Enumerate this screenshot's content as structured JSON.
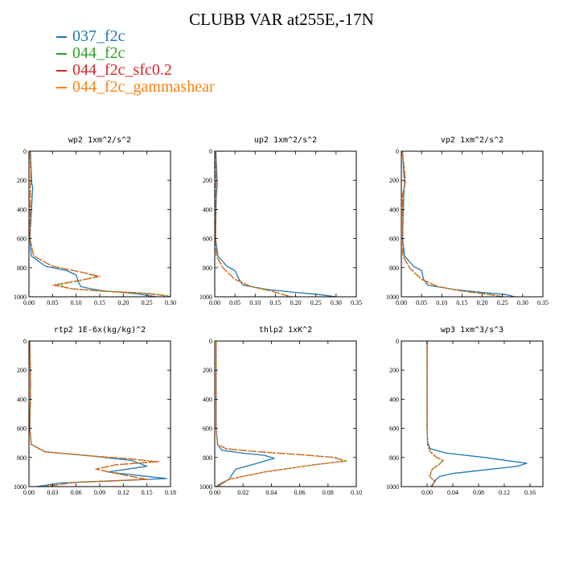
{
  "figure": {
    "title": "CLUBB VAR at255E,-17N"
  },
  "legend": [
    {
      "label": "037_f2c",
      "color": "#1f77b4"
    },
    {
      "label": "044_f2c",
      "color": "#2ca02c"
    },
    {
      "label": "044_f2c_sfc0.2",
      "color": "#d62728"
    },
    {
      "label": "044_f2c_gammashear",
      "color": "#ff7f0e"
    }
  ],
  "chart_data": [
    {
      "type": "line",
      "title": "wp2  1xm^2/s^2",
      "xlim": [
        0,
        0.3
      ],
      "ylim": [
        1000,
        0
      ],
      "ylabel": "",
      "xticks": [
        0,
        0.05,
        0.1,
        0.15,
        0.2,
        0.25,
        0.3
      ],
      "xtick_labels": [
        "0.00",
        "0.05",
        "0.10",
        "0.15",
        "0.20",
        "0.25",
        "0.30"
      ],
      "yticks": [
        0,
        200,
        400,
        600,
        800,
        1000
      ],
      "ytick_labels": [
        "0",
        "200",
        "400",
        "600",
        "800",
        "1000"
      ],
      "series": [
        {
          "color": "#1f77b4",
          "x": [
            0.003,
            0.005,
            0.006,
            0.008,
            0.007,
            0.002,
            0.005,
            0.035,
            0.08,
            0.1,
            0.105,
            0.11,
            0.13,
            0.16,
            0.2,
            0.23,
            0.25,
            0.27
          ],
          "y": [
            0,
            150,
            220,
            250,
            300,
            600,
            720,
            790,
            820,
            850,
            900,
            930,
            945,
            960,
            970,
            980,
            990,
            1000
          ]
        },
        {
          "color": "#2ca02c",
          "x": [
            0.002,
            0.004,
            0.003,
            0.002,
            0.01,
            0.05,
            0.11,
            0.145,
            0.12,
            0.06,
            0.09,
            0.15,
            0.25,
            0.29,
            0.3
          ],
          "y": [
            0,
            150,
            250,
            600,
            720,
            790,
            830,
            860,
            880,
            920,
            945,
            960,
            975,
            990,
            1000
          ]
        },
        {
          "color": "#d62728",
          "x": [
            0.002,
            0.004,
            0.003,
            0.002,
            0.01,
            0.05,
            0.11,
            0.15,
            0.12,
            0.05,
            0.09,
            0.15,
            0.24,
            0.28,
            0.29
          ],
          "y": [
            0,
            150,
            250,
            600,
            720,
            790,
            830,
            860,
            880,
            920,
            945,
            960,
            975,
            990,
            1000
          ]
        },
        {
          "color": "#ff7f0e",
          "x": [
            0.002,
            0.004,
            0.003,
            0.002,
            0.01,
            0.05,
            0.11,
            0.15,
            0.12,
            0.05,
            0.09,
            0.15,
            0.245,
            0.285,
            0.295
          ],
          "y": [
            0,
            150,
            250,
            600,
            720,
            790,
            830,
            860,
            880,
            920,
            945,
            960,
            975,
            990,
            1000
          ]
        }
      ]
    },
    {
      "type": "line",
      "title": "up2  1xm^2/s^2",
      "xlim": [
        0,
        0.35
      ],
      "ylim": [
        1000,
        0
      ],
      "ylabel": "",
      "xticks": [
        0,
        0.05,
        0.1,
        0.15,
        0.2,
        0.25,
        0.3,
        0.35
      ],
      "xtick_labels": [
        "0.00",
        "0.05",
        "0.10",
        "0.15",
        "0.20",
        "0.25",
        "0.30",
        "0.35"
      ],
      "yticks": [
        0,
        200,
        400,
        600,
        800,
        1000
      ],
      "ytick_labels": [
        "0",
        "200",
        "400",
        "600",
        "800",
        "1000"
      ],
      "series": [
        {
          "color": "#1f77b4",
          "x": [
            0.003,
            0.005,
            0.006,
            0.004,
            0.002,
            0.008,
            0.03,
            0.05,
            0.06,
            0.07,
            0.13,
            0.2,
            0.26,
            0.3
          ],
          "y": [
            0,
            150,
            230,
            300,
            600,
            720,
            790,
            820,
            880,
            920,
            950,
            970,
            985,
            1000
          ]
        },
        {
          "color": "#2ca02c",
          "x": [
            0.002,
            0.003,
            0.002,
            0.004,
            0.02,
            0.05,
            0.09,
            0.14,
            0.17,
            0.19
          ],
          "y": [
            0,
            150,
            600,
            720,
            800,
            880,
            930,
            960,
            985,
            1000
          ]
        },
        {
          "color": "#d62728",
          "x": [
            0.002,
            0.003,
            0.002,
            0.004,
            0.02,
            0.05,
            0.09,
            0.14,
            0.17,
            0.185
          ],
          "y": [
            0,
            150,
            600,
            720,
            800,
            880,
            930,
            960,
            985,
            1000
          ]
        },
        {
          "color": "#ff7f0e",
          "x": [
            0.002,
            0.003,
            0.002,
            0.004,
            0.02,
            0.05,
            0.09,
            0.14,
            0.17,
            0.188
          ],
          "y": [
            0,
            150,
            600,
            720,
            800,
            880,
            930,
            960,
            985,
            1000
          ]
        }
      ]
    },
    {
      "type": "line",
      "title": "vp2  1xm^2/s^2",
      "xlim": [
        0,
        0.35
      ],
      "ylim": [
        1000,
        0
      ],
      "ylabel": "",
      "xticks": [
        0,
        0.05,
        0.1,
        0.15,
        0.2,
        0.25,
        0.3,
        0.35
      ],
      "xtick_labels": [
        "0.00",
        "0.05",
        "0.10",
        "0.15",
        "0.20",
        "0.25",
        "0.30",
        "0.35"
      ],
      "yticks": [
        0,
        200,
        400,
        600,
        800,
        1000
      ],
      "ytick_labels": [
        "0",
        "200",
        "400",
        "600",
        "800",
        "1000"
      ],
      "series": [
        {
          "color": "#1f77b4",
          "x": [
            0.003,
            0.006,
            0.008,
            0.006,
            0.003,
            0.008,
            0.03,
            0.05,
            0.055,
            0.065,
            0.13,
            0.2,
            0.26,
            0.28
          ],
          "y": [
            0,
            150,
            220,
            300,
            600,
            720,
            790,
            820,
            880,
            920,
            950,
            970,
            985,
            1000
          ]
        },
        {
          "color": "#2ca02c",
          "x": [
            0.002,
            0.009,
            0.01,
            0.003,
            0.004,
            0.02,
            0.05,
            0.09,
            0.15,
            0.22,
            0.25
          ],
          "y": [
            0,
            150,
            220,
            300,
            720,
            800,
            880,
            930,
            960,
            985,
            1000
          ]
        },
        {
          "color": "#d62728",
          "x": [
            0.002,
            0.008,
            0.009,
            0.003,
            0.004,
            0.02,
            0.05,
            0.09,
            0.15,
            0.22,
            0.25
          ],
          "y": [
            0,
            150,
            220,
            300,
            720,
            800,
            880,
            930,
            960,
            985,
            1000
          ]
        },
        {
          "color": "#ff7f0e",
          "x": [
            0.002,
            0.008,
            0.009,
            0.003,
            0.004,
            0.02,
            0.05,
            0.09,
            0.15,
            0.22,
            0.252
          ],
          "y": [
            0,
            150,
            220,
            300,
            720,
            800,
            880,
            930,
            960,
            985,
            1000
          ]
        }
      ]
    },
    {
      "type": "line",
      "title": "rtp2  1E-6x(kg/kg)^2",
      "xlim": [
        0,
        0.18
      ],
      "ylim": [
        1000,
        0
      ],
      "ylabel": "",
      "xticks": [
        0,
        0.03,
        0.06,
        0.09,
        0.12,
        0.15,
        0.18
      ],
      "xtick_labels": [
        "0.00",
        "0.03",
        "0.06",
        "0.09",
        "0.12",
        "0.15",
        "0.18"
      ],
      "yticks": [
        0,
        200,
        400,
        600,
        800,
        1000
      ],
      "ytick_labels": [
        "0",
        "200",
        "400",
        "600",
        "800",
        "1000"
      ],
      "series": [
        {
          "color": "#1f77b4",
          "x": [
            0.001,
            0.002,
            0.001,
            0.003,
            0.02,
            0.08,
            0.13,
            0.15,
            0.1,
            0.15,
            0.175,
            0.11,
            0.04,
            0.01
          ],
          "y": [
            0,
            300,
            600,
            710,
            760,
            790,
            820,
            860,
            900,
            930,
            945,
            960,
            975,
            1000
          ]
        },
        {
          "color": "#2ca02c",
          "x": [
            0.001,
            0.002,
            0.001,
            0.003,
            0.02,
            0.08,
            0.13,
            0.16,
            0.11,
            0.085,
            0.12,
            0.15,
            0.06,
            0.02
          ],
          "y": [
            0,
            300,
            600,
            710,
            760,
            790,
            810,
            830,
            850,
            880,
            920,
            950,
            970,
            1000
          ]
        },
        {
          "color": "#d62728",
          "x": [
            0.001,
            0.002,
            0.001,
            0.003,
            0.02,
            0.08,
            0.13,
            0.165,
            0.11,
            0.085,
            0.12,
            0.15,
            0.06,
            0.02
          ],
          "y": [
            0,
            300,
            600,
            710,
            760,
            790,
            810,
            830,
            850,
            880,
            920,
            950,
            970,
            1000
          ]
        },
        {
          "color": "#ff7f0e",
          "x": [
            0.001,
            0.002,
            0.001,
            0.003,
            0.02,
            0.08,
            0.13,
            0.16,
            0.11,
            0.085,
            0.12,
            0.15,
            0.06,
            0.02
          ],
          "y": [
            0,
            300,
            600,
            710,
            760,
            790,
            810,
            830,
            850,
            880,
            920,
            950,
            970,
            1000
          ]
        }
      ]
    },
    {
      "type": "line",
      "title": "thlp2  1xK^2",
      "xlim": [
        0,
        0.1
      ],
      "ylim": [
        1000,
        0
      ],
      "ylabel": "",
      "xticks": [
        0,
        0.02,
        0.04,
        0.06,
        0.08,
        0.1
      ],
      "xtick_labels": [
        "0.00",
        "0.02",
        "0.04",
        "0.06",
        "0.08",
        "0.10"
      ],
      "yticks": [
        0,
        200,
        400,
        600,
        800,
        1000
      ],
      "ytick_labels": [
        "0",
        "200",
        "400",
        "600",
        "800",
        "1000"
      ],
      "series": [
        {
          "color": "#1f77b4",
          "x": [
            0.001,
            0.001,
            0.002,
            0.005,
            0.02,
            0.035,
            0.042,
            0.03,
            0.015,
            0.012,
            0.01,
            0.004,
            0.001
          ],
          "y": [
            0,
            600,
            710,
            750,
            770,
            785,
            805,
            840,
            880,
            920,
            950,
            980,
            1000
          ]
        },
        {
          "color": "#2ca02c",
          "x": [
            0.001,
            0.001,
            0.002,
            0.008,
            0.03,
            0.06,
            0.085,
            0.093,
            0.07,
            0.035,
            0.01,
            0.002
          ],
          "y": [
            0,
            600,
            710,
            740,
            760,
            780,
            800,
            825,
            850,
            900,
            950,
            1000
          ]
        },
        {
          "color": "#d62728",
          "x": [
            0.001,
            0.001,
            0.002,
            0.008,
            0.03,
            0.06,
            0.084,
            0.092,
            0.07,
            0.035,
            0.01,
            0.002
          ],
          "y": [
            0,
            600,
            710,
            740,
            760,
            780,
            800,
            825,
            850,
            900,
            950,
            1000
          ]
        },
        {
          "color": "#ff7f0e",
          "x": [
            0.001,
            0.001,
            0.002,
            0.008,
            0.03,
            0.06,
            0.085,
            0.092,
            0.07,
            0.035,
            0.01,
            0.002
          ],
          "y": [
            0,
            600,
            710,
            740,
            760,
            780,
            800,
            825,
            850,
            900,
            950,
            1000
          ]
        }
      ]
    },
    {
      "type": "line",
      "title": "wp3  1xm^3/s^3",
      "xlim": [
        -0.04,
        0.18
      ],
      "ylim": [
        1000,
        0
      ],
      "ylabel": "",
      "xticks": [
        0,
        0.04,
        0.08,
        0.12,
        0.16
      ],
      "xtick_labels": [
        "0.00",
        "0.04",
        "0.08",
        "0.12",
        "0.16"
      ],
      "yticks": [
        0,
        200,
        400,
        600,
        800,
        1000
      ],
      "ytick_labels": [
        "0",
        "200",
        "400",
        "600",
        "800",
        "1000"
      ],
      "series": [
        {
          "color": "#1f77b4",
          "x": [
            0,
            0,
            0.001,
            0.005,
            0.03,
            0.09,
            0.13,
            0.155,
            0.14,
            0.09,
            0.04,
            0.02,
            0.012,
            0.008
          ],
          "y": [
            0,
            600,
            700,
            740,
            770,
            800,
            825,
            840,
            860,
            885,
            910,
            930,
            960,
            1000
          ]
        },
        {
          "color": "#2ca02c",
          "x": [
            0,
            0,
            0.001,
            0.005,
            0.015,
            0.025,
            0.018,
            0.008,
            0.004,
            0.012,
            0.006
          ],
          "y": [
            0,
            600,
            720,
            760,
            800,
            820,
            850,
            880,
            930,
            965,
            1000
          ]
        },
        {
          "color": "#d62728",
          "x": [
            0,
            0,
            0.001,
            0.005,
            0.015,
            0.025,
            0.018,
            0.008,
            0.004,
            0.012,
            0.006
          ],
          "y": [
            0,
            600,
            720,
            760,
            800,
            820,
            850,
            880,
            930,
            965,
            1000
          ]
        },
        {
          "color": "#ff7f0e",
          "x": [
            0,
            0,
            0.001,
            0.005,
            0.015,
            0.026,
            0.018,
            0.008,
            0.004,
            0.013,
            0.006
          ],
          "y": [
            0,
            600,
            720,
            760,
            800,
            820,
            850,
            880,
            930,
            965,
            1000
          ]
        }
      ]
    }
  ]
}
